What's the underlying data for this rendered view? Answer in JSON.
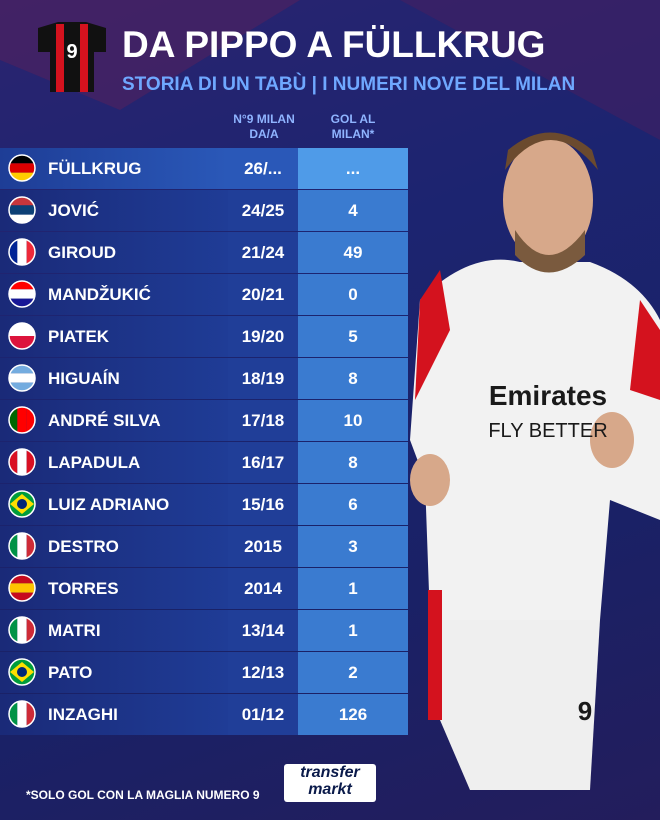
{
  "header": {
    "jersey_number": "9",
    "title": "DA PIPPO A FÜLLKRUG",
    "subtitle": "STORIA DI UN TABÙ | I NUMERI NOVE DEL MILAN"
  },
  "table": {
    "columns": [
      "N°9 MILAN DA/A",
      "GOL AL MILAN*"
    ],
    "rows": [
      [
        "FÜLLKRUG",
        "26/...",
        "..."
      ],
      [
        "JOVIĆ",
        "24/25",
        "4"
      ],
      [
        "GIROUD",
        "21/24",
        "49"
      ],
      [
        "MANDŽUKIĆ",
        "20/21",
        "0"
      ],
      [
        "PIATEK",
        "19/20",
        "5"
      ],
      [
        "HIGUAÍN",
        "18/19",
        "8"
      ],
      [
        "ANDRÉ SILVA",
        "17/18",
        "10"
      ],
      [
        "LAPADULA",
        "16/17",
        "8"
      ],
      [
        "LUIZ ADRIANO",
        "15/16",
        "6"
      ],
      [
        "DESTRO",
        "2015",
        "3"
      ],
      [
        "TORRES",
        "2014",
        "1"
      ],
      [
        "MATRI",
        "13/14",
        "1"
      ],
      [
        "PATO",
        "12/13",
        "2"
      ],
      [
        "INZAGHI",
        "01/12",
        "126"
      ]
    ]
  },
  "photo": {
    "sponsor": "Emirates",
    "sponsor_line": "FLY BETTER",
    "shorts_number": "9"
  },
  "footer": {
    "note": "*SOLO GOL CON LA MAGLIA NUMERO 9",
    "logo_top": "transfer",
    "logo_bottom": "markt"
  }
}
